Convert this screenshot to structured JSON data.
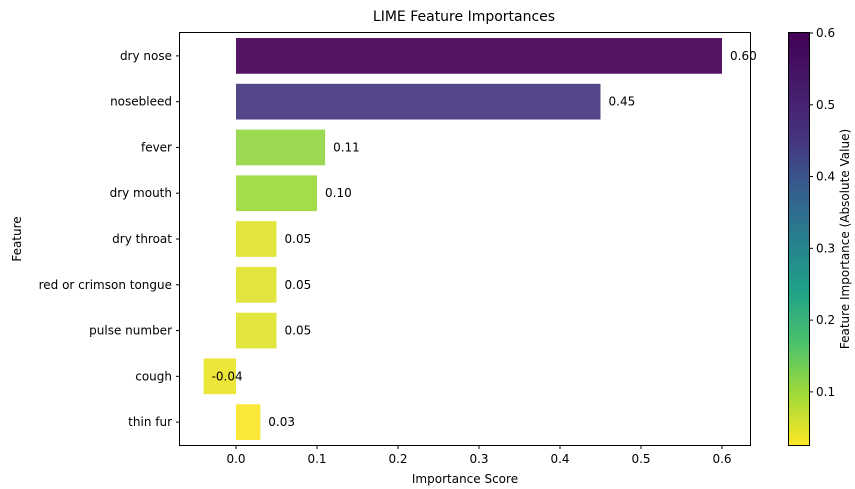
{
  "chart_data": {
    "type": "bar",
    "orientation": "horizontal",
    "title": "LIME Feature Importances",
    "xlabel": "Importance Score",
    "ylabel": "Feature",
    "xlim": [
      -0.07,
      0.63
    ],
    "x_ticks": [
      "0.0",
      "0.1",
      "0.2",
      "0.3",
      "0.4",
      "0.5",
      "0.6"
    ],
    "categories": [
      "dry nose",
      "nosebleed",
      "fever",
      "dry mouth",
      "dry throat",
      "red or crimson tongue",
      "pulse number",
      "cough",
      "thin fur"
    ],
    "values": [
      0.6,
      0.45,
      0.11,
      0.1,
      0.05,
      0.05,
      0.05,
      -0.04,
      0.03
    ],
    "value_labels": [
      "0.60",
      "0.45",
      "0.11",
      "0.10",
      "0.05",
      "0.05",
      "0.05",
      "-0.04",
      "0.03"
    ],
    "colorbar": {
      "label": "Feature Importance (Absolute Value)",
      "colormap": "viridis_r",
      "range": [
        0.026,
        0.6
      ],
      "ticks": [
        "0.1",
        "0.2",
        "0.3",
        "0.4",
        "0.5",
        "0.6"
      ]
    },
    "grid": false
  }
}
